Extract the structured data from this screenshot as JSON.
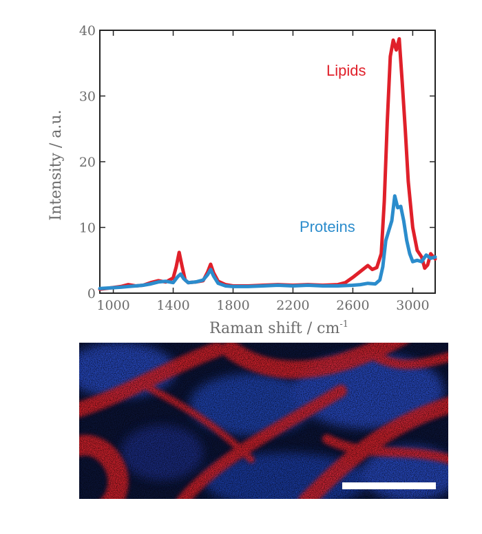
{
  "chart_data": {
    "type": "line",
    "xlabel": "Raman shift / cm",
    "xlabel_sup": "-1",
    "ylabel": "Intensity / a.u.",
    "xlim": [
      910,
      3150
    ],
    "ylim": [
      0,
      40
    ],
    "xticks": [
      1000,
      1400,
      1800,
      2200,
      2600,
      3000
    ],
    "yticks": [
      0,
      10,
      20,
      30,
      40
    ],
    "grid": false,
    "series": [
      {
        "name": "Lipids",
        "color": "#e0202a",
        "x": [
          910,
          980,
          1050,
          1100,
          1150,
          1200,
          1250,
          1300,
          1350,
          1400,
          1420,
          1440,
          1460,
          1480,
          1500,
          1550,
          1600,
          1630,
          1650,
          1670,
          1700,
          1750,
          1800,
          1900,
          2000,
          2100,
          2200,
          2300,
          2400,
          2500,
          2550,
          2600,
          2650,
          2700,
          2730,
          2760,
          2790,
          2810,
          2830,
          2850,
          2870,
          2890,
          2910,
          2930,
          2950,
          2970,
          3000,
          3030,
          3060,
          3080,
          3100,
          3120,
          3150
        ],
        "y": [
          0.6,
          0.8,
          1.0,
          1.3,
          1.1,
          1.2,
          1.6,
          1.9,
          1.7,
          2.3,
          4.0,
          6.2,
          4.0,
          2.0,
          1.6,
          1.7,
          1.9,
          3.2,
          4.4,
          3.1,
          1.8,
          1.3,
          1.1,
          1.1,
          1.2,
          1.3,
          1.2,
          1.3,
          1.2,
          1.3,
          1.6,
          2.4,
          3.3,
          4.2,
          3.6,
          3.9,
          6.0,
          14.0,
          26.0,
          36.0,
          38.5,
          37.0,
          38.7,
          32.0,
          25.0,
          17.0,
          10.0,
          6.5,
          5.5,
          3.8,
          4.3,
          6.0,
          5.2
        ]
      },
      {
        "name": "Proteins",
        "color": "#2b8ccc",
        "x": [
          910,
          980,
          1050,
          1100,
          1150,
          1200,
          1250,
          1300,
          1350,
          1400,
          1430,
          1450,
          1470,
          1500,
          1550,
          1600,
          1630,
          1650,
          1670,
          1700,
          1750,
          1800,
          1900,
          2000,
          2100,
          2200,
          2300,
          2400,
          2500,
          2600,
          2650,
          2700,
          2750,
          2780,
          2800,
          2820,
          2840,
          2860,
          2880,
          2900,
          2920,
          2940,
          2960,
          2980,
          3000,
          3030,
          3060,
          3090,
          3120,
          3150
        ],
        "y": [
          0.7,
          0.8,
          0.9,
          1.0,
          1.1,
          1.2,
          1.4,
          1.7,
          1.8,
          1.6,
          2.5,
          2.9,
          2.2,
          1.6,
          1.7,
          2.0,
          2.8,
          3.6,
          2.6,
          1.5,
          1.1,
          1.0,
          1.0,
          1.1,
          1.2,
          1.1,
          1.2,
          1.1,
          1.1,
          1.2,
          1.3,
          1.5,
          1.4,
          2.0,
          4.0,
          8.0,
          9.5,
          11.0,
          14.8,
          13.0,
          13.2,
          11.0,
          8.0,
          6.0,
          4.8,
          5.0,
          4.8,
          5.8,
          5.3,
          5.5
        ]
      }
    ]
  },
  "scale_bar": {
    "color": "#ffffff"
  },
  "micrograph": {
    "colors": [
      "#e0202a",
      "#2a4fd0",
      "#0b1438"
    ]
  }
}
